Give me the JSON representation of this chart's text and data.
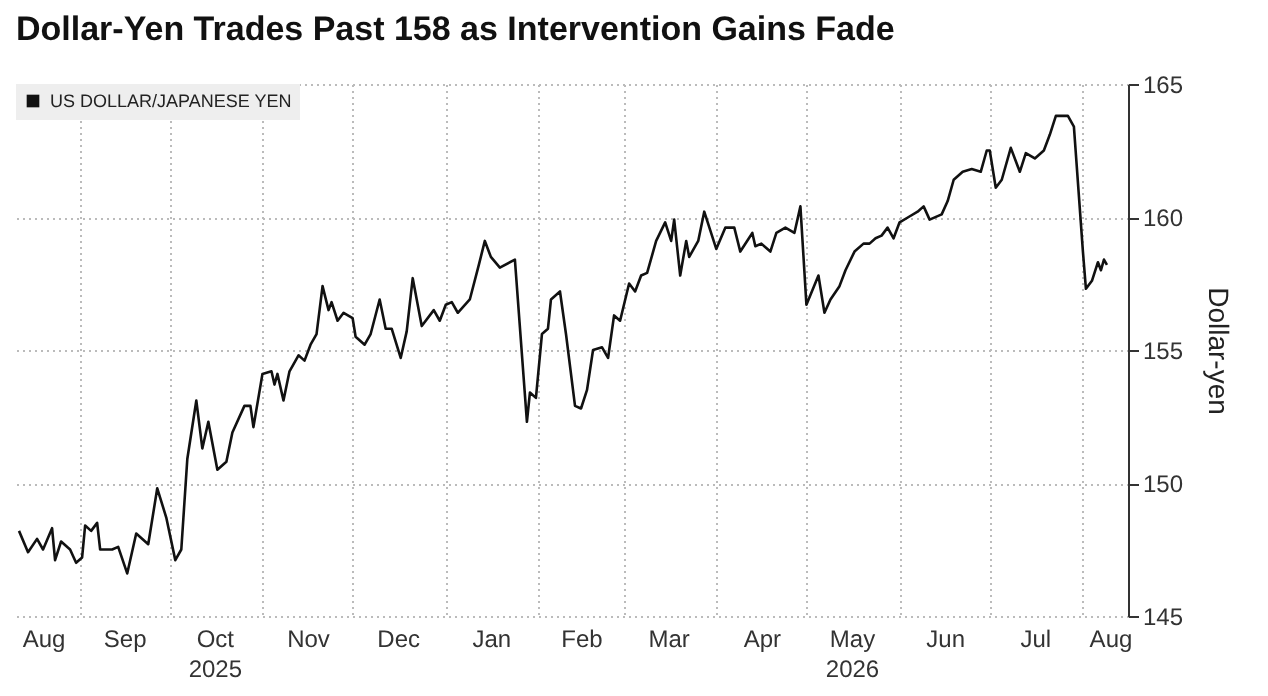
{
  "chart_data": {
    "type": "line",
    "title": "Dollar-Yen Trades Past 158 as Intervention Gains Fade",
    "ylabel": "Dollar-yen",
    "xlim": [
      "2025-08-11",
      "2026-08-16"
    ],
    "ylim": [
      145,
      165
    ],
    "yticks": [
      145,
      150,
      155,
      160,
      165
    ],
    "xticks": [
      {
        "value": "2025-08-20",
        "label": "Aug"
      },
      {
        "value": "2025-09-01",
        "label": null
      },
      {
        "value": "2025-09-16",
        "label": "Sep"
      },
      {
        "value": "2025-10-01",
        "label": null
      },
      {
        "value": "2025-10-16",
        "label": "Oct\n2025"
      },
      {
        "value": "2025-11-01",
        "label": null
      },
      {
        "value": "2025-11-16",
        "label": "Nov"
      },
      {
        "value": "2025-12-01",
        "label": null
      },
      {
        "value": "2025-12-16",
        "label": "Dec"
      },
      {
        "value": "2026-01-01",
        "label": null
      },
      {
        "value": "2026-01-16",
        "label": "Jan"
      },
      {
        "value": "2026-02-01",
        "label": null
      },
      {
        "value": "2026-02-15",
        "label": "Feb"
      },
      {
        "value": "2026-03-01",
        "label": null
      },
      {
        "value": "2026-03-16",
        "label": "Mar"
      },
      {
        "value": "2026-04-01",
        "label": null
      },
      {
        "value": "2026-04-16",
        "label": "Apr"
      },
      {
        "value": "2026-05-01",
        "label": null
      },
      {
        "value": "2026-05-16",
        "label": "May\n2026"
      },
      {
        "value": "2026-06-01",
        "label": null
      },
      {
        "value": "2026-06-16",
        "label": "Jun"
      },
      {
        "value": "2026-07-01",
        "label": null
      },
      {
        "value": "2026-07-16",
        "label": "Jul"
      },
      {
        "value": "2026-08-01",
        "label": null
      },
      {
        "value": "2026-08-10",
        "label": "Aug"
      }
    ],
    "grid": true,
    "legend": "top left",
    "line_style": "solid",
    "series": [
      {
        "name": "US DOLLAR/JAPANESE YEN",
        "color": "#111111",
        "x": [
          "2025-08-12",
          "2025-08-15",
          "2025-08-18",
          "2025-08-20",
          "2025-08-23",
          "2025-08-24",
          "2025-08-26",
          "2025-08-29",
          "2025-08-31",
          "2025-09-02",
          "2025-09-03",
          "2025-09-05",
          "2025-09-07",
          "2025-09-08",
          "2025-09-12",
          "2025-09-14",
          "2025-09-17",
          "2025-09-20",
          "2025-09-24",
          "2025-09-27",
          "2025-09-30",
          "2025-10-03",
          "2025-10-05",
          "2025-10-07",
          "2025-10-10",
          "2025-10-12",
          "2025-10-14",
          "2025-10-17",
          "2025-10-20",
          "2025-10-22",
          "2025-10-26",
          "2025-10-28",
          "2025-10-29",
          "2025-11-01",
          "2025-11-04",
          "2025-11-05",
          "2025-11-06",
          "2025-11-08",
          "2025-11-10",
          "2025-11-13",
          "2025-11-15",
          "2025-11-17",
          "2025-11-19",
          "2025-11-21",
          "2025-11-23",
          "2025-11-24",
          "2025-11-26",
          "2025-11-28",
          "2025-12-01",
          "2025-12-02",
          "2025-12-05",
          "2025-12-07",
          "2025-12-10",
          "2025-12-12",
          "2025-12-14",
          "2025-12-17",
          "2025-12-19",
          "2025-12-21",
          "2025-12-24",
          "2025-12-28",
          "2025-12-30",
          "2026-01-01",
          "2026-01-03",
          "2026-01-05",
          "2026-01-09",
          "2026-01-12",
          "2026-01-14",
          "2026-01-16",
          "2026-01-19",
          "2026-01-24",
          "2026-01-28",
          "2026-01-29",
          "2026-01-31",
          "2026-02-02",
          "2026-02-04",
          "2026-02-05",
          "2026-02-08",
          "2026-02-10",
          "2026-02-13",
          "2026-02-15",
          "2026-02-17",
          "2026-02-19",
          "2026-02-22",
          "2026-02-24",
          "2026-02-26",
          "2026-02-28",
          "2026-03-03",
          "2026-03-05",
          "2026-03-07",
          "2026-03-09",
          "2026-03-12",
          "2026-03-15",
          "2026-03-17",
          "2026-03-18",
          "2026-03-20",
          "2026-03-22",
          "2026-03-23",
          "2026-03-26",
          "2026-03-28",
          "2026-04-01",
          "2026-04-04",
          "2026-04-07",
          "2026-04-09",
          "2026-04-13",
          "2026-04-14",
          "2026-04-16",
          "2026-04-19",
          "2026-04-21",
          "2026-04-24",
          "2026-04-27",
          "2026-04-29",
          "2026-05-01",
          "2026-05-05",
          "2026-05-07",
          "2026-05-09",
          "2026-05-12",
          "2026-05-14",
          "2026-05-17",
          "2026-05-20",
          "2026-05-22",
          "2026-05-24",
          "2026-05-26",
          "2026-05-28",
          "2026-05-30",
          "2026-06-01",
          "2026-06-04",
          "2026-06-07",
          "2026-06-09",
          "2026-06-11",
          "2026-06-15",
          "2026-06-17",
          "2026-06-19",
          "2026-06-22",
          "2026-06-25",
          "2026-06-28",
          "2026-06-30",
          "2026-07-01",
          "2026-07-03",
          "2026-07-05",
          "2026-07-08",
          "2026-07-11",
          "2026-07-13",
          "2026-07-16",
          "2026-07-19",
          "2026-07-21",
          "2026-07-23",
          "2026-07-27",
          "2026-07-29",
          "2026-08-01",
          "2026-08-02",
          "2026-08-04",
          "2026-08-06",
          "2026-08-07",
          "2026-08-08",
          "2026-08-09"
        ],
        "values": [
          148.2,
          147.4,
          147.9,
          147.5,
          148.3,
          147.1,
          147.8,
          147.5,
          147.0,
          147.2,
          148.4,
          148.2,
          148.5,
          147.5,
          147.5,
          147.6,
          146.6,
          148.1,
          147.7,
          149.8,
          148.7,
          147.1,
          147.5,
          150.9,
          153.1,
          151.3,
          152.3,
          150.5,
          150.8,
          151.9,
          152.9,
          152.9,
          152.1,
          154.1,
          154.2,
          153.7,
          154.1,
          153.1,
          154.2,
          154.8,
          154.6,
          155.2,
          155.6,
          157.4,
          156.5,
          156.8,
          156.1,
          156.4,
          156.2,
          155.5,
          155.2,
          155.6,
          156.9,
          155.8,
          155.8,
          154.7,
          155.7,
          157.7,
          155.9,
          156.5,
          156.1,
          156.7,
          156.8,
          156.4,
          156.9,
          158.2,
          159.1,
          158.5,
          158.1,
          158.4,
          152.3,
          153.4,
          153.2,
          155.6,
          155.8,
          156.9,
          157.2,
          155.6,
          152.9,
          152.8,
          153.5,
          155.0,
          155.1,
          154.7,
          156.3,
          156.1,
          157.5,
          157.2,
          157.8,
          157.9,
          159.1,
          159.8,
          159.1,
          159.9,
          157.8,
          159.1,
          158.5,
          159.1,
          160.2,
          158.8,
          159.6,
          159.6,
          158.7,
          159.4,
          158.9,
          159.0,
          158.7,
          159.4,
          159.6,
          159.4,
          160.4,
          156.7,
          157.8,
          156.4,
          156.9,
          157.4,
          158.0,
          158.7,
          159.0,
          159.0,
          159.2,
          159.3,
          159.6,
          159.2,
          159.8,
          160.0,
          160.2,
          160.4,
          159.9,
          160.1,
          160.6,
          161.4,
          161.7,
          161.8,
          161.7,
          162.5,
          162.5,
          161.1,
          161.4,
          162.6,
          161.7,
          162.4,
          162.2,
          162.5,
          163.1,
          163.8,
          163.8,
          163.4,
          158.7,
          157.3,
          157.6,
          158.3,
          158.0,
          158.4,
          158.2
        ]
      }
    ]
  }
}
